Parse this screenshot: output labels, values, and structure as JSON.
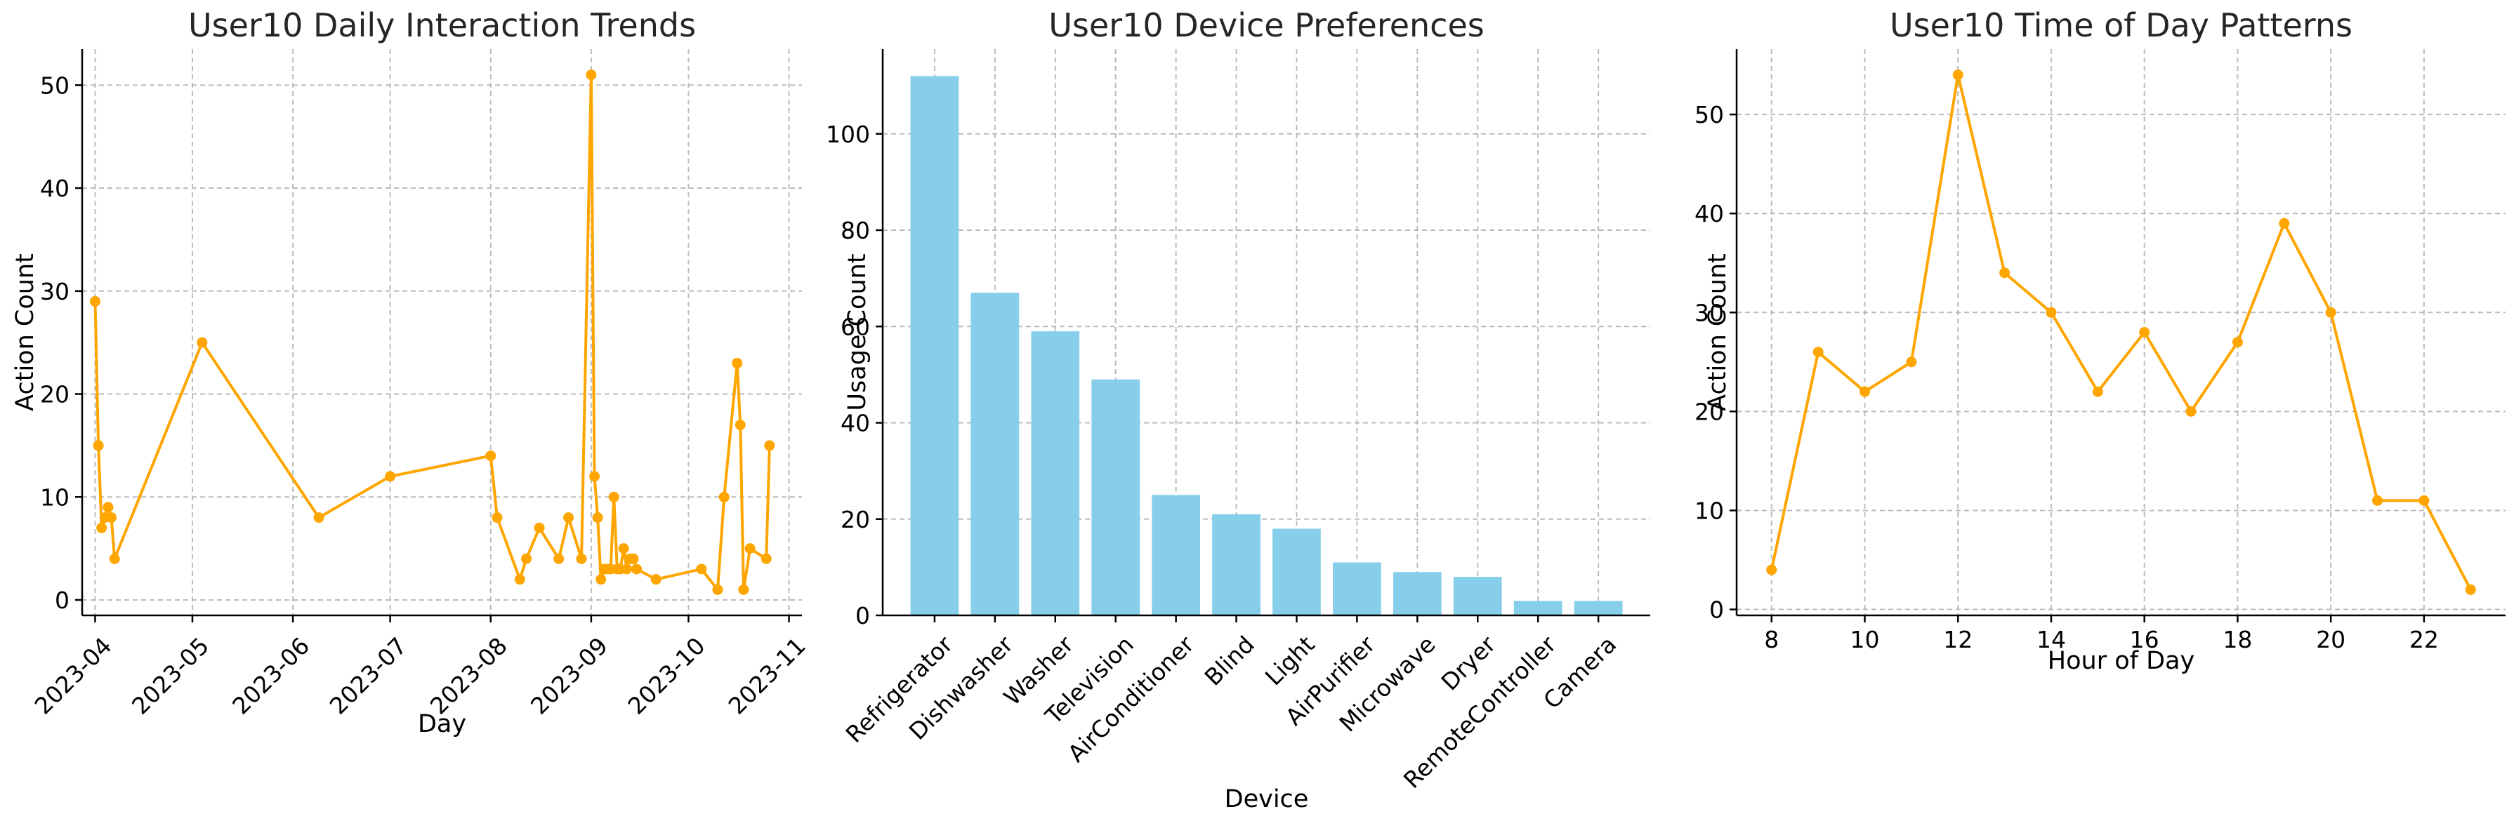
{
  "chart_data": [
    {
      "type": "line",
      "title": "User10 Daily Interaction Trends",
      "xlabel": "Day",
      "ylabel": "Action Count",
      "color": "#FFA500",
      "x_ticks": [
        "2023-04",
        "2023-05",
        "2023-06",
        "2023-07",
        "2023-08",
        "2023-09",
        "2023-10",
        "2023-11"
      ],
      "x_tick_days": [
        0,
        30,
        61,
        91,
        122,
        153,
        183,
        214
      ],
      "x_range": [
        -4,
        218
      ],
      "y_ticks": [
        0,
        10,
        20,
        30,
        40,
        50
      ],
      "ylim": [
        -1.5,
        53.5
      ],
      "points": [
        {
          "day": 0,
          "value": 29
        },
        {
          "day": 1,
          "value": 15
        },
        {
          "day": 2,
          "value": 7
        },
        {
          "day": 3,
          "value": 8
        },
        {
          "day": 4,
          "value": 9
        },
        {
          "day": 5,
          "value": 8
        },
        {
          "day": 6,
          "value": 4
        },
        {
          "day": 33,
          "value": 25
        },
        {
          "day": 69,
          "value": 8
        },
        {
          "day": 91,
          "value": 12
        },
        {
          "day": 122,
          "value": 14
        },
        {
          "day": 124,
          "value": 8
        },
        {
          "day": 131,
          "value": 2
        },
        {
          "day": 133,
          "value": 4
        },
        {
          "day": 137,
          "value": 7
        },
        {
          "day": 143,
          "value": 4
        },
        {
          "day": 146,
          "value": 8
        },
        {
          "day": 150,
          "value": 4
        },
        {
          "day": 153,
          "value": 51
        },
        {
          "day": 154,
          "value": 12
        },
        {
          "day": 155,
          "value": 8
        },
        {
          "day": 156,
          "value": 2
        },
        {
          "day": 157,
          "value": 3
        },
        {
          "day": 158,
          "value": 3
        },
        {
          "day": 159,
          "value": 3
        },
        {
          "day": 160,
          "value": 10
        },
        {
          "day": 161,
          "value": 3
        },
        {
          "day": 162,
          "value": 3
        },
        {
          "day": 163,
          "value": 5
        },
        {
          "day": 164,
          "value": 3
        },
        {
          "day": 165,
          "value": 4
        },
        {
          "day": 166,
          "value": 4
        },
        {
          "day": 167,
          "value": 3
        },
        {
          "day": 173,
          "value": 2
        },
        {
          "day": 187,
          "value": 3
        },
        {
          "day": 192,
          "value": 1
        },
        {
          "day": 194,
          "value": 10
        },
        {
          "day": 198,
          "value": 23
        },
        {
          "day": 199,
          "value": 17
        },
        {
          "day": 200,
          "value": 1
        },
        {
          "day": 202,
          "value": 5
        },
        {
          "day": 207,
          "value": 4
        },
        {
          "day": 208,
          "value": 15
        }
      ]
    },
    {
      "type": "bar",
      "title": "User10 Device Preferences",
      "xlabel": "Device",
      "ylabel": "Usage Count",
      "color": "#87CEEB",
      "categories": [
        "Refrigerator",
        "Dishwasher",
        "Washer",
        "Television",
        "AirConditioner",
        "Blind",
        "Light",
        "AirPurifier",
        "Microwave",
        "Dryer",
        "RemoteController",
        "Camera"
      ],
      "values": [
        112,
        67,
        59,
        49,
        25,
        21,
        18,
        11,
        9,
        8,
        3,
        3
      ],
      "y_ticks": [
        0,
        20,
        40,
        60,
        80,
        100
      ],
      "ylim": [
        0,
        117.6
      ]
    },
    {
      "type": "line",
      "title": "User10 Time of Day Patterns",
      "xlabel": "Hour of Day",
      "ylabel": "Action Count",
      "color": "#FFA500",
      "x": [
        8,
        9,
        10,
        11,
        12,
        13,
        14,
        15,
        16,
        17,
        18,
        19,
        20,
        21,
        22,
        23
      ],
      "values": [
        4,
        26,
        22,
        25,
        54,
        34,
        30,
        22,
        28,
        20,
        27,
        39,
        30,
        11,
        11,
        2
      ],
      "x_ticks": [
        8,
        10,
        12,
        14,
        16,
        18,
        20,
        22
      ],
      "xlim": [
        7.25,
        23.75
      ],
      "y_ticks": [
        0,
        10,
        20,
        30,
        40,
        50
      ],
      "ylim": [
        -0.6,
        56.6
      ]
    }
  ]
}
